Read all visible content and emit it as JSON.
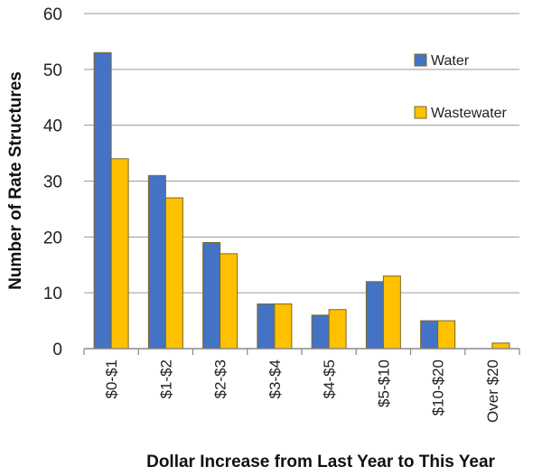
{
  "chart_data": {
    "type": "bar",
    "categories": [
      "$0-$1",
      "$1-$2",
      "$2-$3",
      "$3-$4",
      "$4-$5",
      "$5-$10",
      "$10-$20",
      "Over $20"
    ],
    "series": [
      {
        "name": "Water",
        "values": [
          53,
          31,
          19,
          8,
          6,
          12,
          5,
          0
        ],
        "color": "#4472c4"
      },
      {
        "name": "Wastewater",
        "values": [
          34,
          27,
          17,
          8,
          7,
          13,
          5,
          1
        ],
        "color": "#ffc000"
      }
    ],
    "xlabel": "Dollar Increase from Last Year to This Year",
    "ylabel": "Number of Rate Structures",
    "ylim": [
      0,
      60
    ],
    "yticks": [
      0,
      10,
      20,
      30,
      40,
      50,
      60
    ],
    "grid": true,
    "legend_position": "right",
    "border_color": "#7a6a2a",
    "grid_color": "#9a9a9a"
  }
}
